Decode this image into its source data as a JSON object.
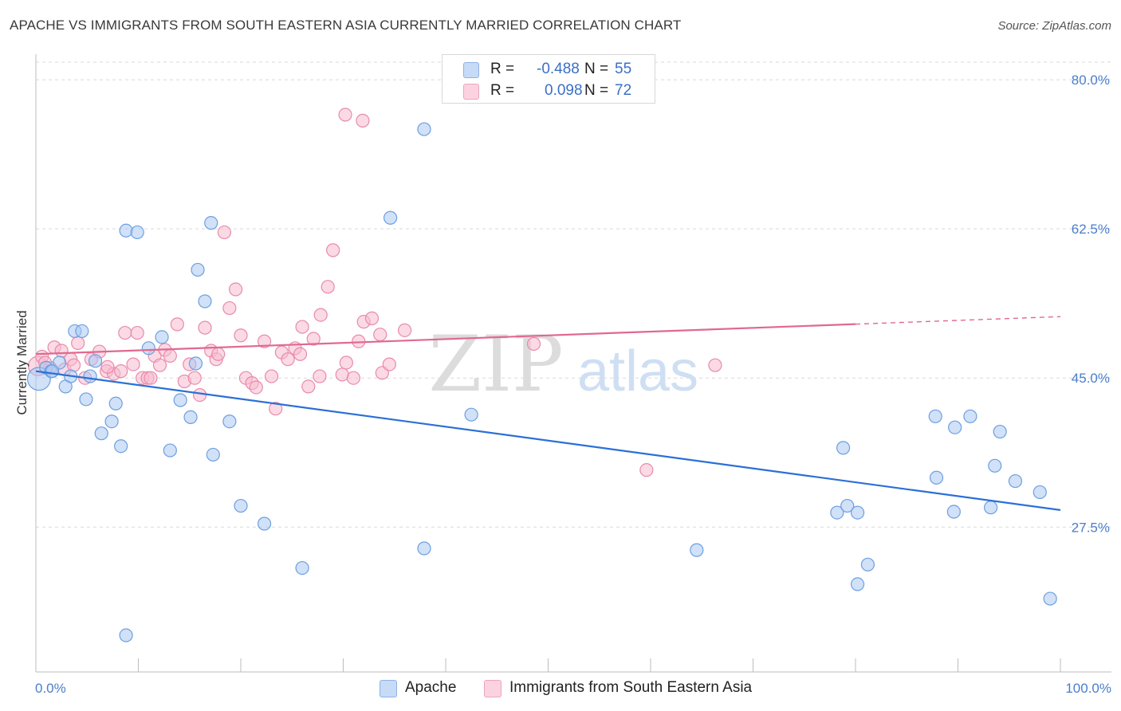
{
  "title": "APACHE VS IMMIGRANTS FROM SOUTH EASTERN ASIA CURRENTLY MARRIED CORRELATION CHART",
  "source": "Source: ZipAtlas.com",
  "watermark": {
    "zip": "ZIP",
    "atlas": "atlas"
  },
  "legend_top": {
    "rows": [
      {
        "r_label": "R =",
        "r_value": "-0.488",
        "n_label": "N =",
        "n_value": "55",
        "color": "#a9c8f2"
      },
      {
        "r_label": "R =",
        "r_value": "0.098",
        "n_label": "N =",
        "n_value": "72",
        "color": "#f7bcd0"
      }
    ]
  },
  "legend_bottom": {
    "items": [
      {
        "label": "Apache",
        "color": "#a9c8f2"
      },
      {
        "label": "Immigrants from South Eastern Asia",
        "color": "#f7bcd0"
      }
    ]
  },
  "colors": {
    "blue_fill": "#a9c8f2",
    "blue_stroke": "#6d9fe0",
    "blue_line": "#2b6fd6",
    "pink_fill": "#f7bcd0",
    "pink_stroke": "#e88aaa",
    "pink_line": "#e0698f",
    "tick_text": "#4a7ecb",
    "grid": "#d9d9d9"
  },
  "chart_data": {
    "type": "scatter",
    "xlabel": "",
    "ylabel": "Currently Married",
    "xlim": [
      0,
      100
    ],
    "ylim": [
      10.5,
      83
    ],
    "x_tick_labels": {
      "left": "0.0%",
      "right": "100.0%"
    },
    "y_ticks": [
      {
        "value": 80.0,
        "label": "80.0%"
      },
      {
        "value": 62.5,
        "label": "62.5%"
      },
      {
        "value": 45.0,
        "label": "45.0%"
      },
      {
        "value": 27.5,
        "label": "27.5%"
      }
    ],
    "series": [
      {
        "name": "Apache",
        "color": "#a9c8f2",
        "points": [
          [
            0.3,
            44.9,
            1.8
          ],
          [
            1.0,
            46.2,
            1
          ],
          [
            1.5,
            45.8,
            1
          ],
          [
            2.3,
            46.8,
            1
          ],
          [
            2.9,
            44.0,
            1
          ],
          [
            3.4,
            45.2,
            1
          ],
          [
            3.8,
            50.5,
            1
          ],
          [
            4.5,
            50.5,
            1
          ],
          [
            4.9,
            42.5,
            1
          ],
          [
            5.3,
            45.2,
            1
          ],
          [
            5.8,
            47.0,
            1
          ],
          [
            6.4,
            38.5,
            1
          ],
          [
            7.4,
            39.9,
            1
          ],
          [
            7.8,
            42.0,
            1
          ],
          [
            8.3,
            37.0,
            1
          ],
          [
            8.8,
            62.3,
            1
          ],
          [
            9.9,
            62.1,
            1
          ],
          [
            11.0,
            48.5,
            1
          ],
          [
            12.3,
            49.8,
            1
          ],
          [
            13.1,
            36.5,
            1
          ],
          [
            14.1,
            42.4,
            1
          ],
          [
            15.1,
            40.4,
            1
          ],
          [
            15.6,
            46.7,
            1
          ],
          [
            15.8,
            57.7,
            1
          ],
          [
            16.5,
            54.0,
            1
          ],
          [
            17.1,
            63.2,
            1
          ],
          [
            17.3,
            36.0,
            1
          ],
          [
            18.9,
            39.9,
            1
          ],
          [
            20.0,
            30.0,
            1
          ],
          [
            22.3,
            27.9,
            1
          ],
          [
            26.0,
            22.7,
            1
          ],
          [
            37.9,
            74.2,
            1
          ],
          [
            34.6,
            63.8,
            1
          ],
          [
            37.9,
            25.0,
            1
          ],
          [
            42.5,
            40.7,
            1
          ],
          [
            64.5,
            24.8,
            1
          ],
          [
            78.8,
            36.8,
            1
          ],
          [
            78.2,
            29.2,
            1
          ],
          [
            79.2,
            30.0,
            1
          ],
          [
            80.2,
            29.2,
            1
          ],
          [
            81.2,
            23.1,
            1
          ],
          [
            80.2,
            20.8,
            1
          ],
          [
            87.8,
            40.5,
            1
          ],
          [
            87.9,
            33.3,
            1
          ],
          [
            89.6,
            29.3,
            1
          ],
          [
            89.7,
            39.2,
            1
          ],
          [
            91.2,
            40.5,
            1
          ],
          [
            93.2,
            29.8,
            1
          ],
          [
            93.6,
            34.7,
            1
          ],
          [
            94.1,
            38.7,
            1
          ],
          [
            95.6,
            32.9,
            1
          ],
          [
            98.0,
            31.6,
            1
          ],
          [
            99.0,
            19.1,
            1
          ],
          [
            1.6,
            45.8,
            1
          ],
          [
            8.8,
            14.8,
            1
          ]
        ]
      },
      {
        "name": "Immigrants from South Eastern Asia",
        "color": "#f7bcd0",
        "points": [
          [
            0.2,
            46.4,
            1.5
          ],
          [
            0.6,
            47.5,
            1
          ],
          [
            1.4,
            46.2,
            1
          ],
          [
            1.8,
            48.6,
            1
          ],
          [
            2.5,
            48.2,
            1
          ],
          [
            2.8,
            46.0,
            1
          ],
          [
            3.4,
            47.2,
            1
          ],
          [
            4.1,
            49.1,
            1
          ],
          [
            4.8,
            45.0,
            1
          ],
          [
            5.4,
            47.2,
            1
          ],
          [
            6.2,
            48.1,
            1
          ],
          [
            6.9,
            45.8,
            1
          ],
          [
            7.6,
            45.5,
            1
          ],
          [
            8.3,
            45.8,
            1
          ],
          [
            8.7,
            50.3,
            1
          ],
          [
            9.5,
            46.6,
            1
          ],
          [
            9.9,
            50.3,
            1
          ],
          [
            10.4,
            45.0,
            1
          ],
          [
            10.9,
            45.0,
            1
          ],
          [
            11.2,
            45.0,
            1
          ],
          [
            11.6,
            47.6,
            1
          ],
          [
            12.6,
            48.3,
            1
          ],
          [
            13.1,
            47.6,
            1
          ],
          [
            13.8,
            51.3,
            1
          ],
          [
            14.5,
            44.6,
            1
          ],
          [
            15.0,
            46.6,
            1
          ],
          [
            15.5,
            45.0,
            1
          ],
          [
            16.0,
            43.0,
            1
          ],
          [
            16.5,
            50.9,
            1
          ],
          [
            17.1,
            48.2,
            1
          ],
          [
            17.6,
            47.2,
            1
          ],
          [
            17.8,
            47.8,
            1
          ],
          [
            18.4,
            62.1,
            1
          ],
          [
            18.9,
            53.2,
            1
          ],
          [
            19.5,
            55.4,
            1
          ],
          [
            20.0,
            50.0,
            1
          ],
          [
            20.5,
            45.0,
            1
          ],
          [
            21.1,
            44.4,
            1
          ],
          [
            21.5,
            43.9,
            1
          ],
          [
            22.3,
            49.3,
            1
          ],
          [
            23.0,
            45.2,
            1
          ],
          [
            23.4,
            41.4,
            1
          ],
          [
            24.0,
            48.0,
            1
          ],
          [
            24.6,
            47.2,
            1
          ],
          [
            25.3,
            48.5,
            1
          ],
          [
            25.8,
            47.8,
            1
          ],
          [
            26.0,
            51.0,
            1
          ],
          [
            26.6,
            44.0,
            1
          ],
          [
            27.1,
            49.6,
            1
          ],
          [
            27.8,
            52.4,
            1
          ],
          [
            27.7,
            45.2,
            1
          ],
          [
            28.5,
            55.7,
            1
          ],
          [
            29.0,
            60.0,
            1
          ],
          [
            29.9,
            45.4,
            1
          ],
          [
            30.3,
            46.8,
            1
          ],
          [
            31.0,
            45.0,
            1
          ],
          [
            31.5,
            49.3,
            1
          ],
          [
            32.0,
            51.6,
            1
          ],
          [
            32.8,
            52.0,
            1
          ],
          [
            33.6,
            50.1,
            1
          ],
          [
            33.8,
            45.6,
            1
          ],
          [
            34.5,
            46.6,
            1
          ],
          [
            36.0,
            50.6,
            1
          ],
          [
            30.2,
            75.9,
            1
          ],
          [
            31.9,
            75.2,
            1
          ],
          [
            48.6,
            49.0,
            1
          ],
          [
            59.6,
            34.2,
            1
          ],
          [
            66.3,
            46.5,
            1
          ],
          [
            0.9,
            46.8,
            1
          ],
          [
            3.7,
            46.5,
            1
          ],
          [
            12.1,
            46.5,
            1
          ],
          [
            7.0,
            46.3,
            1
          ]
        ]
      }
    ],
    "trend_lines": [
      {
        "series": "Apache",
        "x0": 0,
        "y0": 45.8,
        "x1": 100,
        "y1": 29.5,
        "dashed_from": null
      },
      {
        "series": "Immigrants from South Eastern Asia",
        "x0": 0,
        "y0": 47.8,
        "x1": 100,
        "y1": 52.2,
        "dashed_from": 80
      }
    ]
  }
}
